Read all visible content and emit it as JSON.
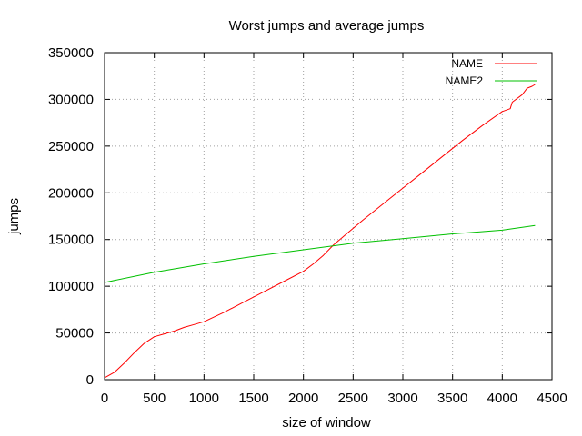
{
  "chart_data": {
    "type": "line",
    "title": "Worst jumps and average jumps",
    "xlabel": "size of window",
    "ylabel": "jumps",
    "xlim": [
      0,
      4500
    ],
    "ylim": [
      0,
      350000
    ],
    "x_ticks": [
      0,
      500,
      1000,
      1500,
      2000,
      2500,
      3000,
      3500,
      4000,
      4500
    ],
    "y_ticks": [
      0,
      50000,
      100000,
      150000,
      200000,
      250000,
      300000,
      350000
    ],
    "grid": true,
    "legend_position": "top-right",
    "series": [
      {
        "name": "NAME",
        "color": "#ff0000",
        "x": [
          0,
          100,
          200,
          300,
          400,
          500,
          600,
          700,
          800,
          900,
          1000,
          1200,
          1400,
          1600,
          1800,
          2000,
          2100,
          2200,
          2300,
          2400,
          2600,
          2800,
          3000,
          3200,
          3400,
          3600,
          3800,
          4000,
          4080,
          4100,
          4200,
          4250,
          4300,
          4330
        ],
        "values": [
          2000,
          8000,
          18000,
          29000,
          39000,
          46000,
          49000,
          52000,
          56000,
          59000,
          62000,
          72000,
          83000,
          94000,
          105000,
          116000,
          124000,
          133000,
          144000,
          153000,
          171000,
          188000,
          205000,
          222000,
          239000,
          256000,
          272000,
          287000,
          290000,
          297000,
          305000,
          312000,
          314000,
          316000
        ]
      },
      {
        "name": "NAME2",
        "color": "#00c000",
        "x": [
          0,
          500,
          1000,
          1500,
          2000,
          2500,
          3000,
          3500,
          4000,
          4330
        ],
        "values": [
          104000,
          115000,
          124000,
          132000,
          139000,
          146000,
          151000,
          156000,
          160000,
          165000
        ]
      }
    ]
  }
}
